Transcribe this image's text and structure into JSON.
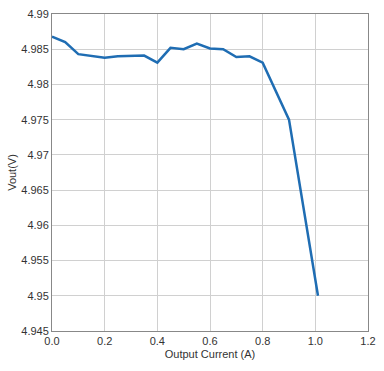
{
  "chart_data": {
    "type": "line",
    "x_label": "Output Current (A)",
    "y_label": "Vout(V)",
    "x": [
      0,
      0.05,
      0.1,
      0.2,
      0.25,
      0.35,
      0.4,
      0.45,
      0.5,
      0.55,
      0.6,
      0.65,
      0.7,
      0.75,
      0.8,
      0.9,
      1.01
    ],
    "values": [
      4.9868,
      4.986,
      4.9843,
      4.9838,
      4.984,
      4.9841,
      4.9831,
      4.9852,
      4.985,
      4.9858,
      4.9851,
      4.985,
      4.9839,
      4.984,
      4.9831,
      4.975,
      4.95
    ],
    "color": "#1f6db3",
    "xlim": [
      0,
      1.2
    ],
    "xticks": [
      {
        "value": 0,
        "label": "0.0"
      },
      0.2,
      0.4,
      0.6,
      0.8,
      {
        "value": 1,
        "label": "1.0"
      },
      1.2
    ],
    "ylim": [
      4.945,
      4.99
    ],
    "yticks": [
      4.945,
      4.95,
      4.955,
      4.96,
      4.965,
      4.97,
      4.975,
      4.98,
      4.985,
      4.99
    ],
    "grid": true
  }
}
